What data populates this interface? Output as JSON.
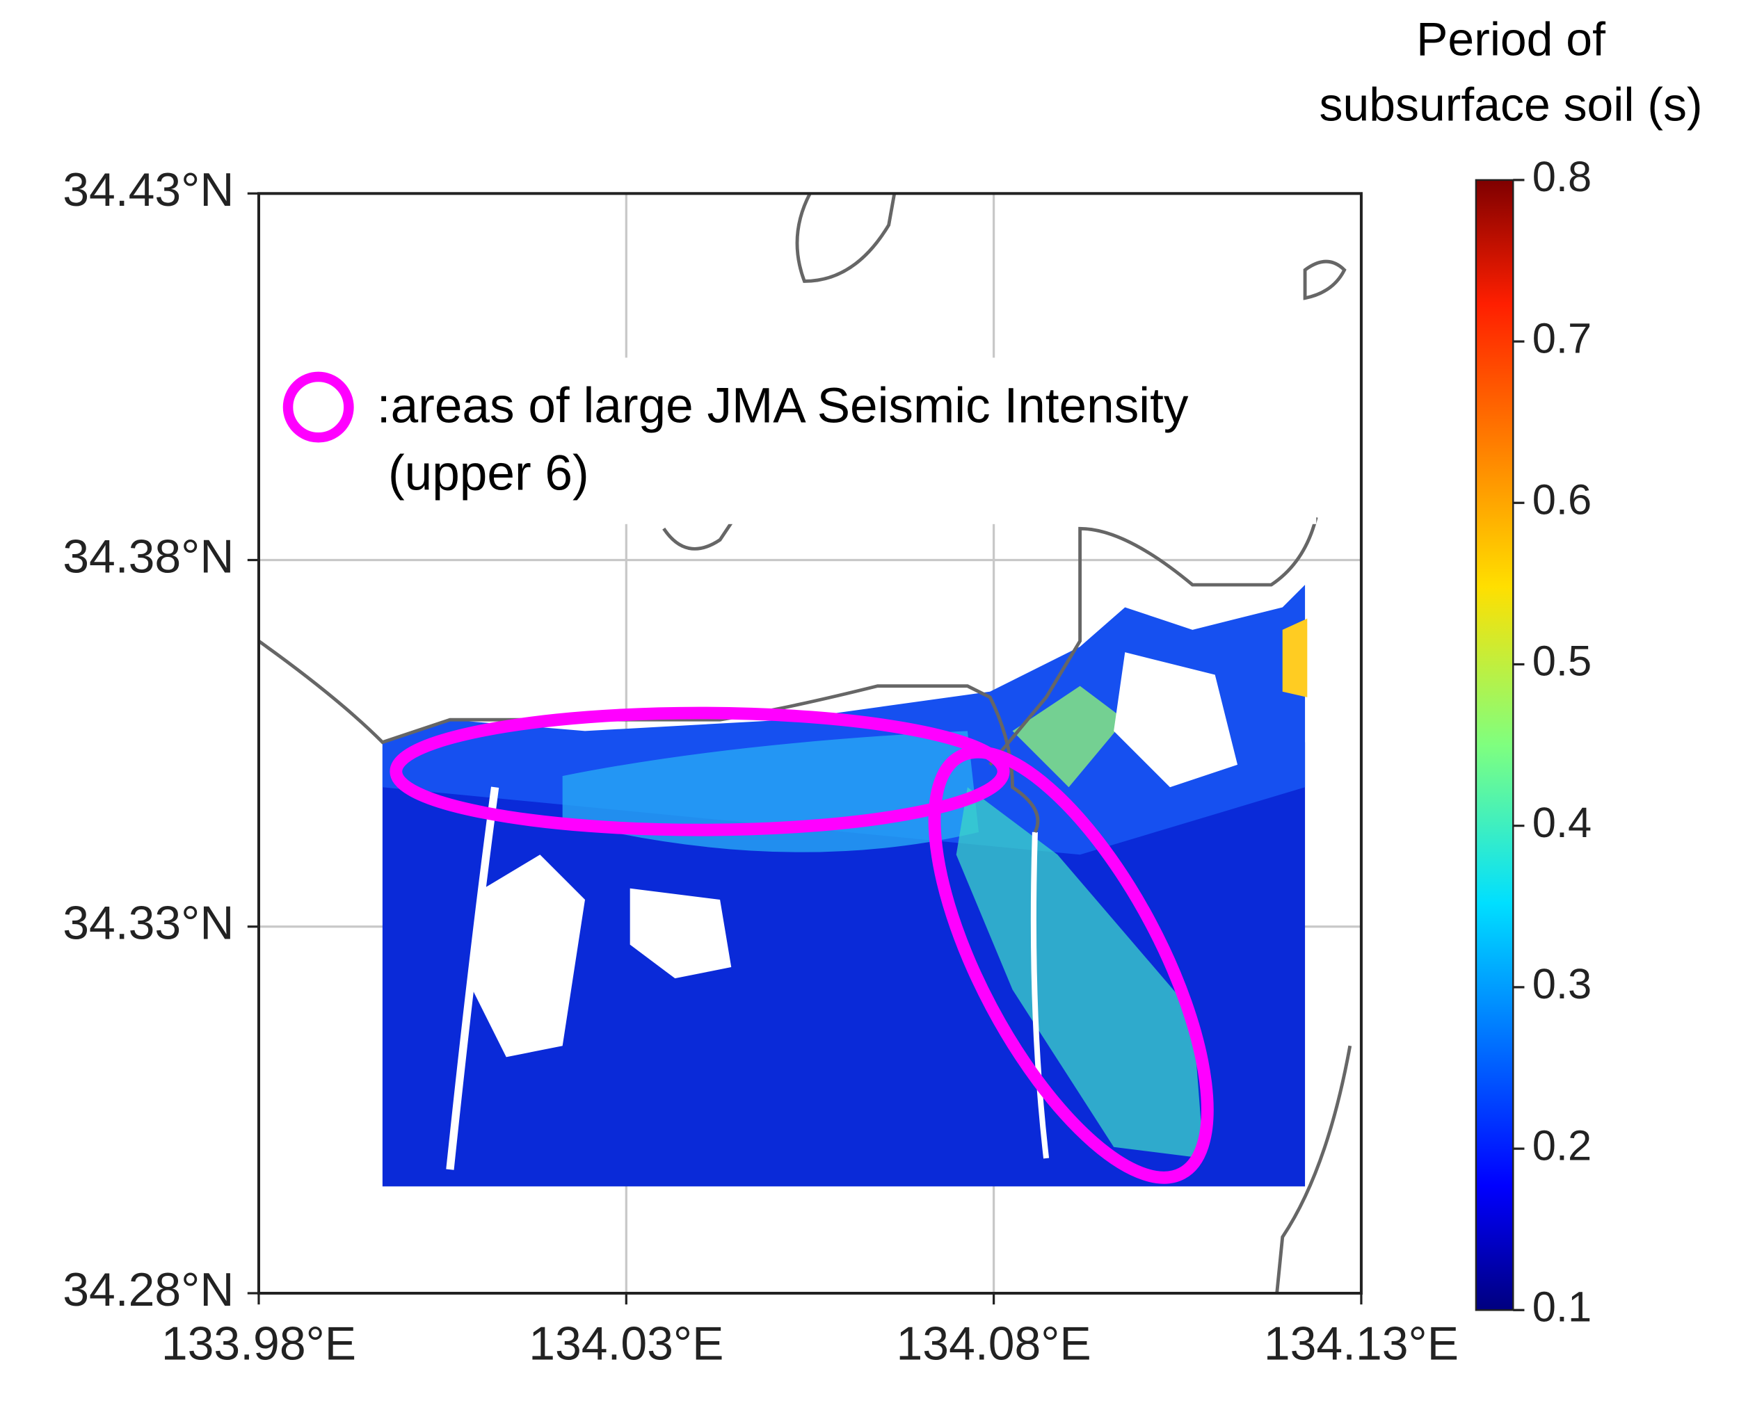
{
  "chart_data": {
    "type": "map",
    "xlim": [
      133.98,
      134.13
    ],
    "xticks": [
      {
        "value": 133.98,
        "label": "133.98°E"
      },
      {
        "value": 134.03,
        "label": "134.03°E"
      },
      {
        "value": 134.08,
        "label": "134.08°E"
      },
      {
        "value": 134.13,
        "label": "134.13°E"
      }
    ],
    "ylim": [
      34.28,
      34.43
    ],
    "yticks": [
      {
        "value": 34.28,
        "label": "34.28°N"
      },
      {
        "value": 34.33,
        "label": "34.33°N"
      },
      {
        "value": 34.38,
        "label": "34.38°N"
      },
      {
        "value": 34.43,
        "label": "34.43°N"
      }
    ],
    "grid": true,
    "colorbar": {
      "label": [
        "Period of",
        "subsurface soil (s)"
      ],
      "lim": [
        0.1,
        0.8
      ],
      "ticks": [
        0.1,
        0.2,
        0.3,
        0.4,
        0.5,
        0.6,
        0.7,
        0.8
      ],
      "colormap": "jet"
    },
    "legend": {
      "text": [
        ":areas of large JMA Seismic Intensity",
        "(upper 6)"
      ],
      "color": "#ff00ff"
    }
  }
}
